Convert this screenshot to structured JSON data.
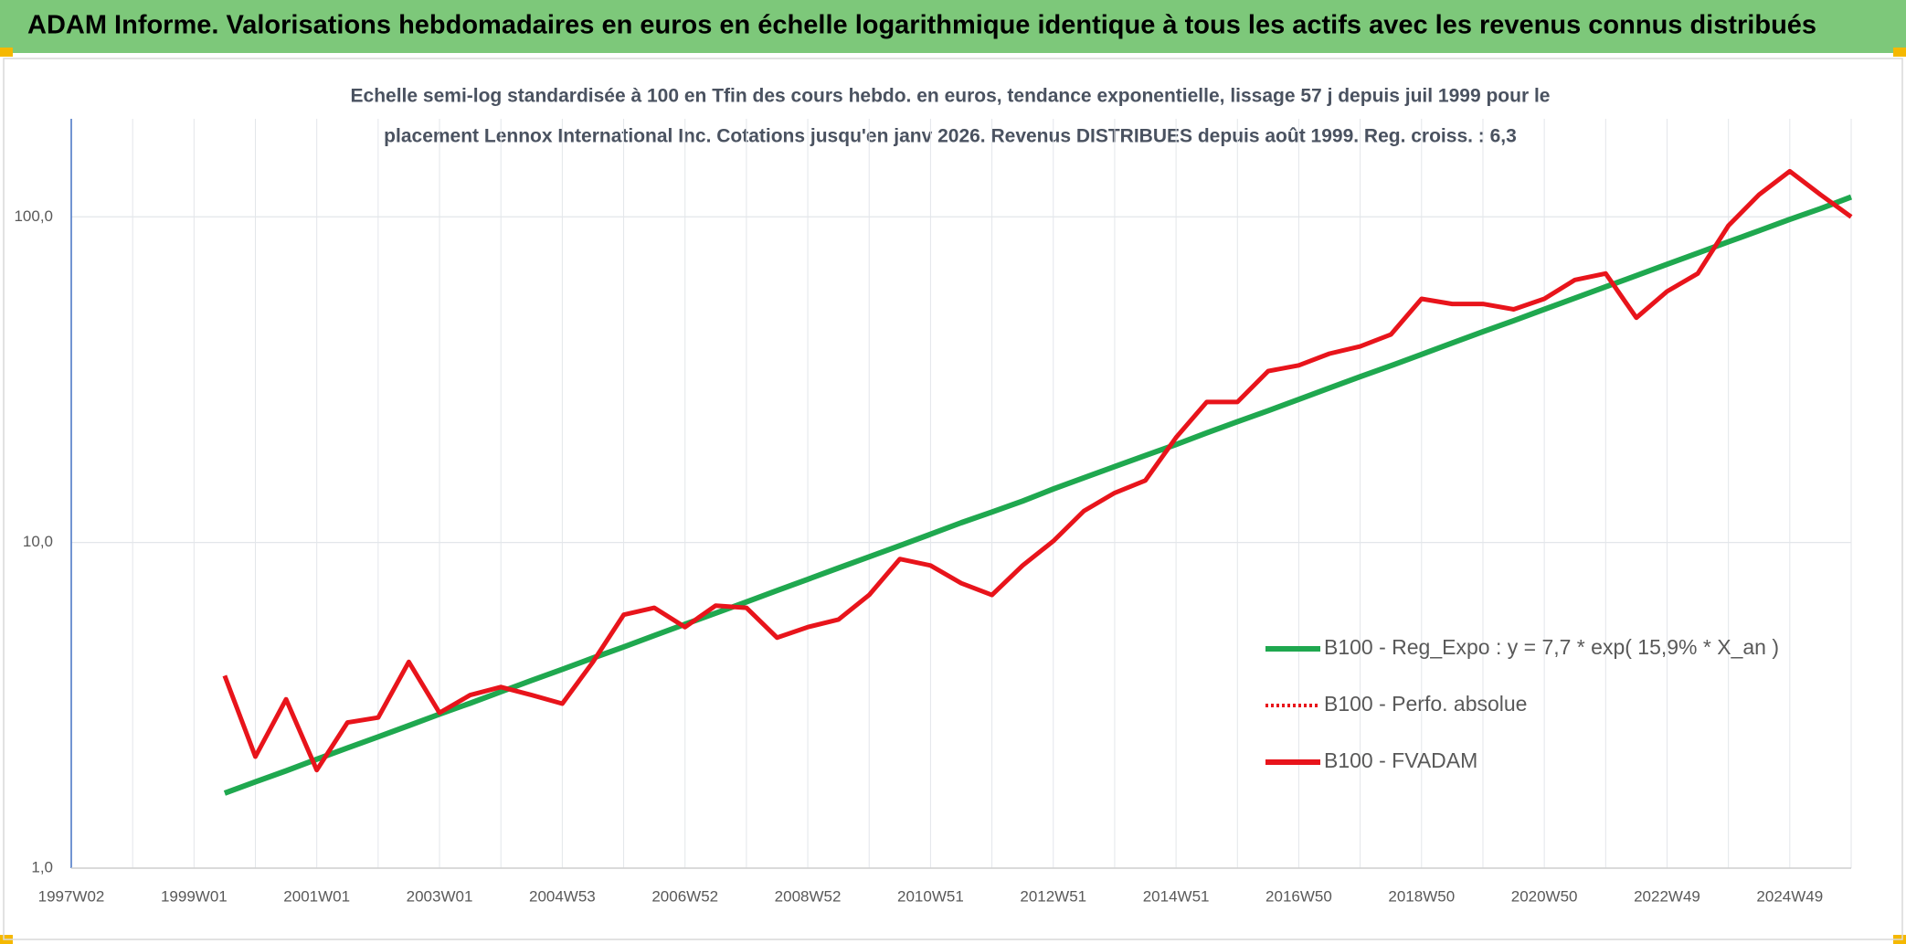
{
  "header": {
    "title": "ADAM Informe. Valorisations hebdomadaires en euros en échelle logarithmique identique à tous les actifs avec les revenus connus distribués"
  },
  "chart_data": {
    "type": "line",
    "subtitle": [
      "Echelle semi-log standardisée à 100 en Tfin des cours hebdo. en euros, tendance exponentielle, lissage 57 j depuis juil 1999 pour le",
      "placement Lennox International Inc. Cotations jusqu'en janv 2026. Revenus DISTRIBUES depuis août 1999. Reg. croiss. : 6,3"
    ],
    "categories": [
      "1997W02",
      null,
      null,
      null,
      "1999W01",
      null,
      null,
      null,
      "2001W01",
      null,
      null,
      null,
      "2003W01",
      null,
      null,
      null,
      "2004W53",
      null,
      null,
      null,
      "2006W52",
      null,
      null,
      null,
      "2008W52",
      null,
      null,
      null,
      "2010W51",
      null,
      null,
      null,
      "2012W51",
      null,
      null,
      null,
      "2014W51",
      null,
      null,
      null,
      "2016W50",
      null,
      null,
      null,
      "2018W50",
      null,
      null,
      null,
      "2020W50",
      null,
      null,
      null,
      "2022W49",
      null,
      null,
      null,
      "2024W49",
      null,
      null
    ],
    "log_scale": true,
    "ylim": [
      1,
      200
    ],
    "yticks": [
      {
        "value": 1,
        "label": "1,0"
      },
      {
        "value": 10,
        "label": "10,0"
      },
      {
        "value": 100,
        "label": "100,0"
      }
    ],
    "grid": true,
    "legend_position": "right",
    "series": [
      {
        "name": "B100 - Reg_Expo : y = 7,7 * exp( 15,9% *  X_an )",
        "color": "#1fa84f",
        "style": "solid",
        "values": [
          null,
          null,
          null,
          null,
          null,
          1.7,
          1.84,
          1.99,
          2.16,
          2.34,
          2.53,
          2.74,
          2.97,
          3.21,
          3.48,
          3.77,
          4.08,
          4.42,
          4.78,
          5.18,
          5.61,
          6.07,
          6.57,
          7.12,
          7.71,
          8.35,
          9.04,
          9.78,
          10.6,
          11.5,
          12.4,
          13.4,
          14.6,
          15.8,
          17.1,
          18.5,
          20.0,
          21.7,
          23.5,
          25.4,
          27.5,
          29.8,
          32.3,
          34.9,
          37.8,
          41.0,
          44.4,
          48.0,
          52.0,
          56.3,
          61.0,
          66.0,
          71.5,
          77.4,
          83.8,
          90.7,
          98.2,
          106,
          115
        ]
      },
      {
        "name": "B100 - Perfo. absolue",
        "color": "#e8141b",
        "style": "dotted",
        "values": [
          null,
          null,
          null,
          null,
          null,
          null,
          null,
          null,
          null,
          null,
          null,
          null,
          null,
          null,
          null,
          null,
          null,
          null,
          null,
          null,
          null,
          null,
          null,
          null,
          null,
          null,
          null,
          null,
          null,
          null,
          null,
          null,
          null,
          null,
          null,
          null,
          null,
          null,
          null,
          null,
          null,
          null,
          null,
          null,
          null,
          null,
          null,
          null,
          null,
          null,
          null,
          null,
          null,
          null,
          null,
          null,
          null,
          null,
          null
        ]
      },
      {
        "name": "B100 - FVADAM",
        "color": "#e8141b",
        "style": "solid",
        "values": [
          null,
          null,
          null,
          null,
          null,
          3.9,
          2.2,
          3.3,
          2.0,
          2.8,
          2.9,
          4.3,
          3.0,
          3.4,
          3.6,
          3.4,
          3.2,
          4.3,
          6.0,
          6.3,
          5.5,
          6.4,
          6.3,
          5.1,
          5.5,
          5.8,
          6.9,
          8.9,
          8.5,
          7.5,
          6.9,
          8.5,
          10.1,
          12.5,
          14.2,
          15.5,
          21,
          27,
          27,
          33.6,
          35,
          38,
          40,
          43.5,
          56,
          54,
          54,
          52,
          56,
          64,
          67,
          49,
          59,
          67,
          94,
          117,
          138,
          117,
          100
        ]
      }
    ]
  }
}
